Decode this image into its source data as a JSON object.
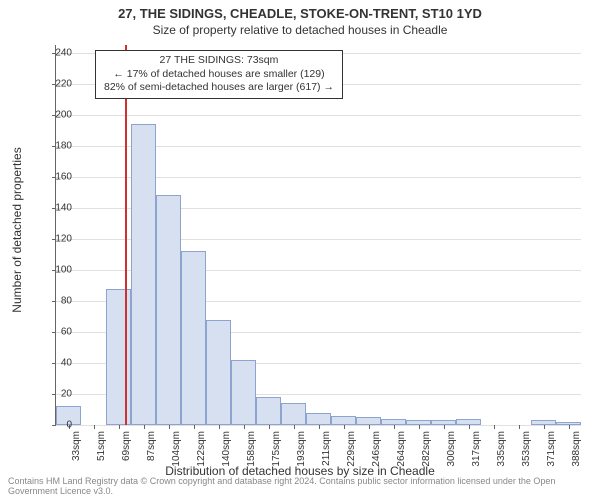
{
  "chart": {
    "type": "histogram",
    "title_main": "27, THE SIDINGS, CHEADLE, STOKE-ON-TRENT, ST10 1YD",
    "title_sub": "Size of property relative to detached houses in Cheadle",
    "ylabel": "Number of detached properties",
    "xlabel": "Distribution of detached houses by size in Cheadle",
    "background_color": "#ffffff",
    "grid_color": "#e0e0e0",
    "axis_color": "#666666",
    "bar_fill": "#d6e0f0",
    "bar_stroke": "#8ca4ce",
    "marker_color": "#d03030",
    "marker_value": 73,
    "title_fontsize": 13,
    "subtitle_fontsize": 12,
    "label_fontsize": 12,
    "tick_fontsize": 10,
    "annotation_fontsize": 10.5,
    "ylim": [
      0,
      245
    ],
    "ytick_step": 20,
    "yticks": [
      0,
      20,
      40,
      60,
      80,
      100,
      120,
      140,
      160,
      180,
      200,
      220,
      240
    ],
    "xtick_labels": [
      "33sqm",
      "51sqm",
      "69sqm",
      "87sqm",
      "104sqm",
      "122sqm",
      "140sqm",
      "158sqm",
      "175sqm",
      "193sqm",
      "211sqm",
      "229sqm",
      "246sqm",
      "264sqm",
      "282sqm",
      "300sqm",
      "317sqm",
      "335sqm",
      "353sqm",
      "371sqm",
      "388sqm"
    ],
    "bar_values": [
      12,
      0,
      88,
      194,
      148,
      112,
      68,
      42,
      18,
      14,
      8,
      6,
      5,
      4,
      3,
      3,
      4,
      0,
      0,
      3,
      2
    ],
    "annotation": {
      "line1": "27 THE SIDINGS: 73sqm",
      "line2": "← 17% of detached houses are smaller (129)",
      "line3": "82% of semi-detached houses are larger (617) →"
    },
    "footer": "Contains HM Land Registry data © Crown copyright and database right 2024. Contains public sector information licensed under the Open Government Licence v3.0."
  }
}
